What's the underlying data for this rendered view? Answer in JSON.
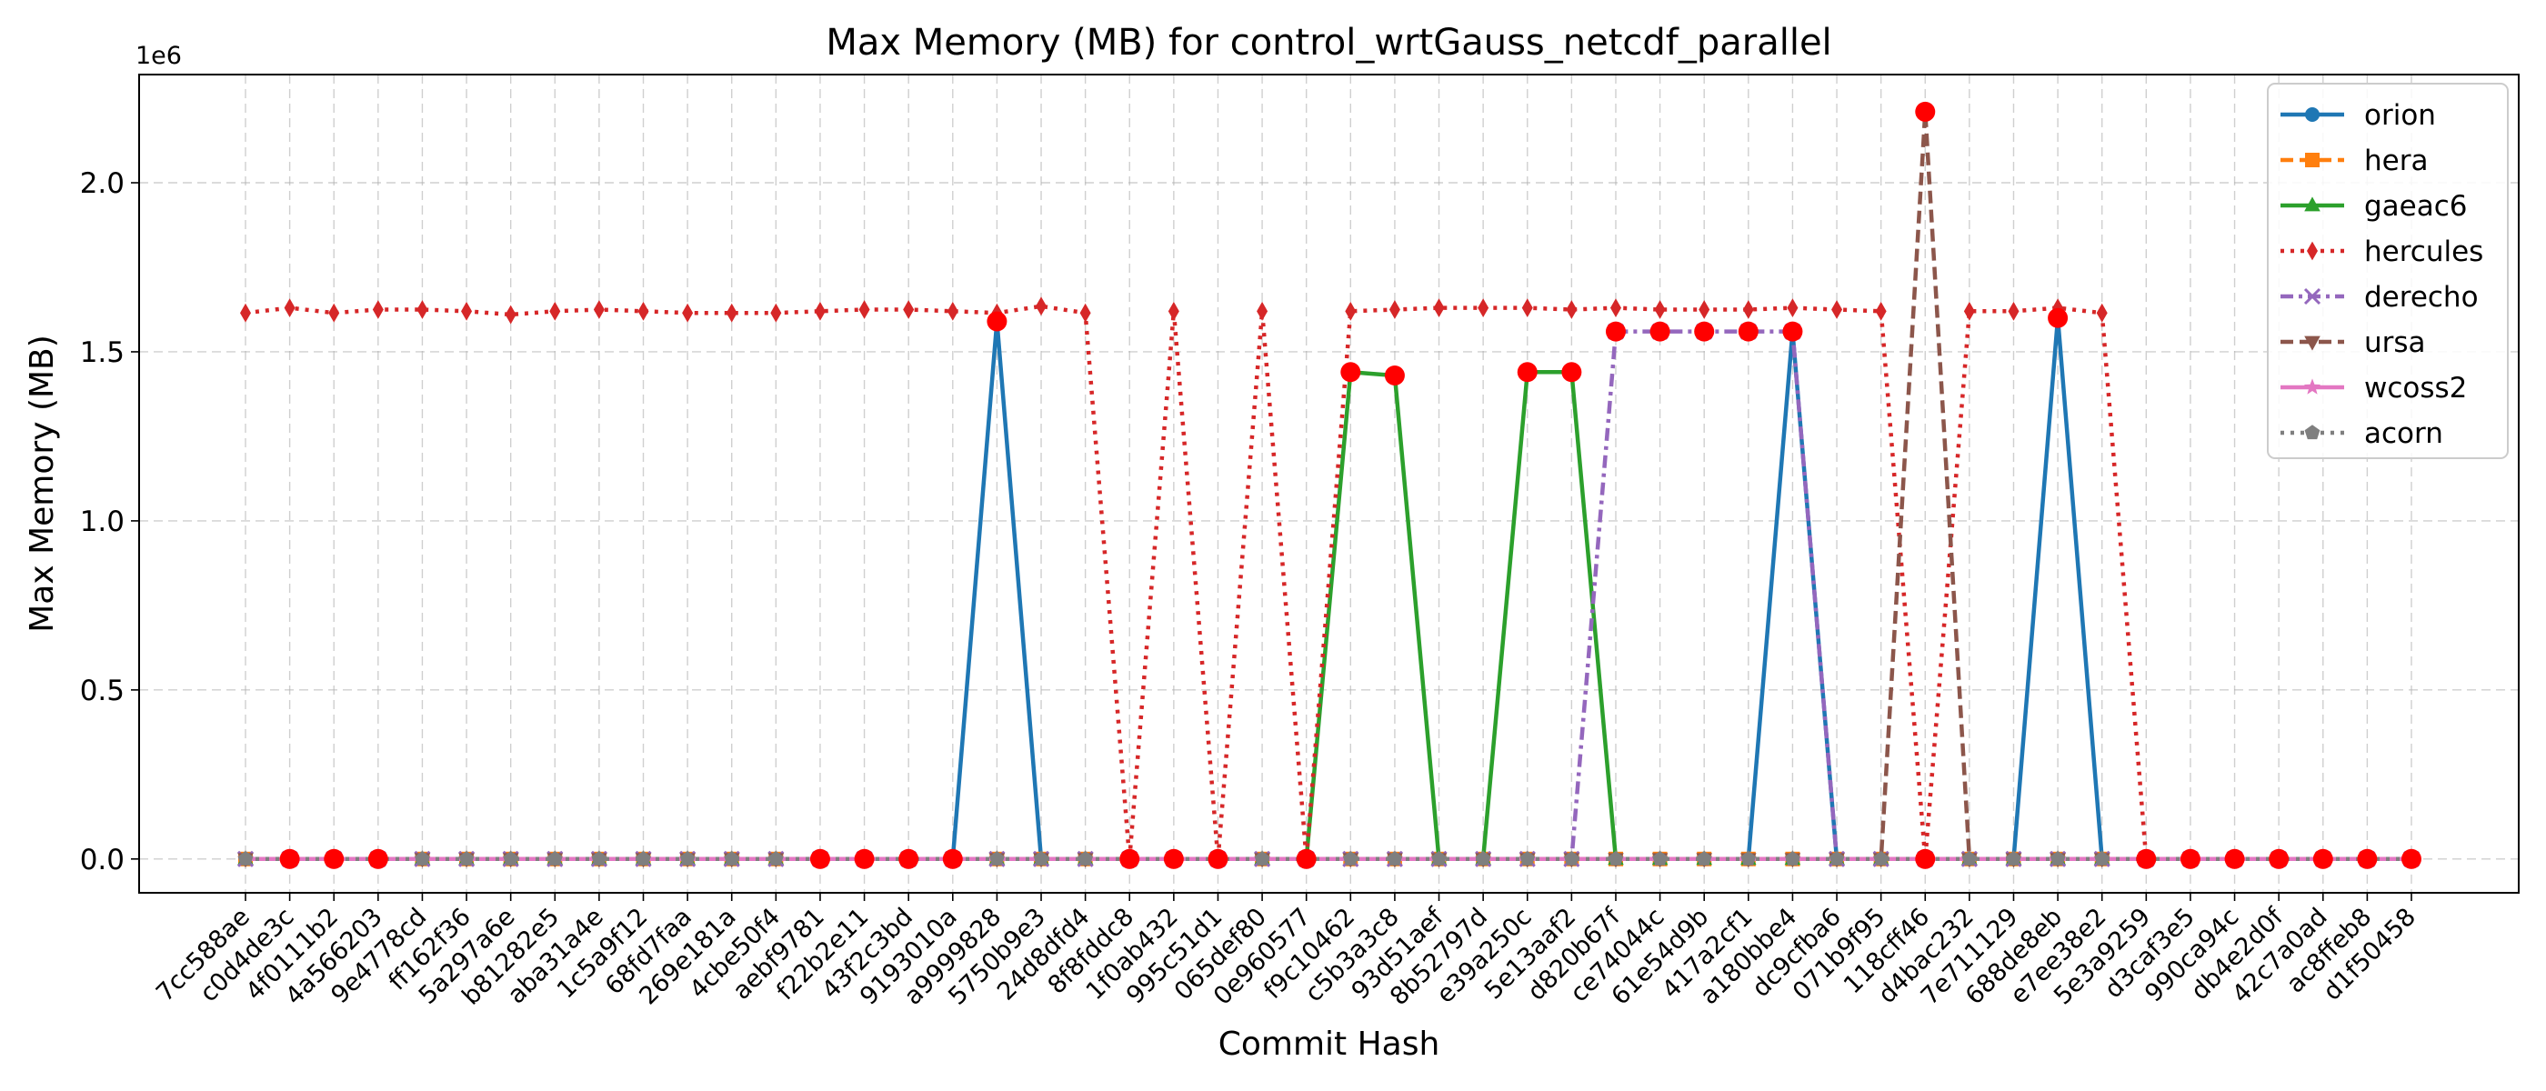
{
  "chart_data": {
    "type": "line",
    "title": "Max Memory (MB) for control_wrtGauss_netcdf_parallel",
    "xlabel": "Commit Hash",
    "ylabel": "Max Memory (MB)",
    "y_offset_label": "1e6",
    "ylim": [
      -100000,
      2320000
    ],
    "yticks": [
      0,
      500000,
      1000000,
      1500000,
      2000000
    ],
    "ytick_labels": [
      "0.0",
      "0.5",
      "1.0",
      "1.5",
      "2.0"
    ],
    "grid": true,
    "legend_position": "top-right",
    "categories": [
      "7cc588ae",
      "c0d4de3c",
      "4f0111b2",
      "4a566203",
      "9e4778cd",
      "ff162f36",
      "5a297a6e",
      "b81282e5",
      "aba31a4e",
      "1c5a9f12",
      "68fd7faa",
      "269e181a",
      "4cbe50f4",
      "aebf9781",
      "f22b2e11",
      "43f2c3bd",
      "9193010a",
      "a9999828",
      "5750b9e3",
      "24d8dfd4",
      "8f8fddc8",
      "1f0ab432",
      "995c51d1",
      "065def80",
      "0e960577",
      "f9c10462",
      "c5b3a3c8",
      "93d51aef",
      "8b52797d",
      "e39a250c",
      "5e13aaf2",
      "d820b67f",
      "ce74044c",
      "61e54d9b",
      "417a2cf1",
      "a180bbe4",
      "dc9cfba6",
      "071b9f95",
      "118cff46",
      "d4bac232",
      "7e711129",
      "688de8eb",
      "e7ee38e2",
      "5e3a9259",
      "d3caf3e5",
      "990ca94c",
      "db4e2d0f",
      "42c7a0ad",
      "ac8ffeb8",
      "d1f50458"
    ],
    "series": [
      {
        "name": "orion",
        "color": "#1f77b4",
        "dash": "solid",
        "marker": "circle",
        "values": [
          0,
          0,
          0,
          0,
          0,
          0,
          0,
          0,
          0,
          0,
          0,
          0,
          0,
          0,
          0,
          0,
          0,
          1590000,
          0,
          0,
          0,
          0,
          0,
          0,
          0,
          0,
          0,
          0,
          0,
          0,
          0,
          0,
          0,
          0,
          0,
          1560000,
          0,
          0,
          0,
          0,
          0,
          1600000,
          0,
          0,
          0,
          0,
          0,
          0,
          0,
          0
        ]
      },
      {
        "name": "hera",
        "color": "#ff7f0e",
        "dash": "dashed",
        "marker": "square",
        "values": [
          0,
          0,
          0,
          0,
          0,
          0,
          0,
          0,
          0,
          0,
          0,
          0,
          0,
          0,
          0,
          0,
          0,
          0,
          0,
          0,
          0,
          0,
          0,
          0,
          0,
          0,
          0,
          0,
          0,
          0,
          0,
          0,
          0,
          0,
          0,
          0,
          0,
          0,
          0,
          0,
          0,
          0,
          0,
          0,
          0,
          0,
          0,
          0,
          0,
          0
        ]
      },
      {
        "name": "gaeac6",
        "color": "#2ca02c",
        "dash": "solid",
        "marker": "triangle-up",
        "values": [
          0,
          0,
          0,
          0,
          0,
          0,
          0,
          0,
          0,
          0,
          0,
          0,
          0,
          0,
          0,
          0,
          0,
          0,
          0,
          0,
          0,
          0,
          0,
          0,
          0,
          1440000,
          1430000,
          0,
          0,
          1440000,
          1440000,
          0,
          0,
          0,
          0,
          0,
          0,
          0,
          0,
          0,
          0,
          0,
          0,
          0,
          0,
          0,
          0,
          0,
          0,
          0
        ]
      },
      {
        "name": "hercules",
        "color": "#d62728",
        "dash": "dotted",
        "marker": "thin-diamond",
        "values": [
          1615000,
          1630000,
          1615000,
          1625000,
          1625000,
          1620000,
          1610000,
          1620000,
          1625000,
          1620000,
          1615000,
          1615000,
          1615000,
          1620000,
          1625000,
          1625000,
          1620000,
          1615000,
          1635000,
          1615000,
          0,
          1620000,
          0,
          1620000,
          0,
          1620000,
          1625000,
          1630000,
          1630000,
          1630000,
          1625000,
          1630000,
          1625000,
          1625000,
          1625000,
          1630000,
          1625000,
          1620000,
          0,
          1620000,
          1620000,
          1630000,
          1615000,
          0,
          0,
          0,
          0,
          0,
          0,
          0
        ]
      },
      {
        "name": "derecho",
        "color": "#9467bd",
        "dash": "dashdot",
        "marker": "x",
        "values": [
          0,
          0,
          0,
          0,
          0,
          0,
          0,
          0,
          0,
          0,
          0,
          0,
          0,
          0,
          0,
          0,
          0,
          0,
          0,
          0,
          0,
          0,
          0,
          0,
          0,
          0,
          0,
          0,
          0,
          0,
          0,
          1560000,
          1560000,
          1560000,
          1560000,
          1560000,
          0,
          0,
          0,
          0,
          0,
          0,
          0,
          0,
          0,
          0,
          0,
          0,
          0,
          0
        ]
      },
      {
        "name": "ursa",
        "color": "#8c564b",
        "dash": "dashed",
        "marker": "triangle-down",
        "values": [
          0,
          0,
          0,
          0,
          0,
          0,
          0,
          0,
          0,
          0,
          0,
          0,
          0,
          0,
          0,
          0,
          0,
          0,
          0,
          0,
          0,
          0,
          0,
          0,
          0,
          0,
          0,
          0,
          0,
          0,
          0,
          0,
          0,
          0,
          0,
          0,
          0,
          0,
          2210000,
          0,
          0,
          0,
          0,
          0,
          0,
          0,
          0,
          0,
          0,
          0
        ]
      },
      {
        "name": "wcoss2",
        "color": "#e377c2",
        "dash": "solid",
        "marker": "star",
        "values": [
          0,
          0,
          0,
          0,
          0,
          0,
          0,
          0,
          0,
          0,
          0,
          0,
          0,
          0,
          0,
          0,
          0,
          0,
          0,
          0,
          0,
          0,
          0,
          0,
          0,
          0,
          0,
          0,
          0,
          0,
          0,
          0,
          0,
          0,
          0,
          0,
          0,
          0,
          0,
          0,
          0,
          0,
          0,
          0,
          0,
          0,
          0,
          0,
          0,
          0
        ]
      },
      {
        "name": "acorn",
        "color": "#7f7f7f",
        "dash": "dotted",
        "marker": "pentagon",
        "values": [
          0,
          0,
          0,
          0,
          0,
          0,
          0,
          0,
          0,
          0,
          0,
          0,
          0,
          0,
          0,
          0,
          0,
          0,
          0,
          0,
          0,
          0,
          0,
          0,
          0,
          0,
          0,
          0,
          0,
          0,
          0,
          0,
          0,
          0,
          0,
          0,
          0,
          0,
          0,
          0,
          0,
          0,
          0,
          0,
          0,
          0,
          0,
          0,
          0,
          0
        ]
      }
    ],
    "highlight_color": "#ff0000",
    "highlights": [
      {
        "x": "c0d4de3c",
        "y": 0
      },
      {
        "x": "4f0111b2",
        "y": 0
      },
      {
        "x": "4a566203",
        "y": 0
      },
      {
        "x": "aebf9781",
        "y": 0
      },
      {
        "x": "f22b2e11",
        "y": 0
      },
      {
        "x": "43f2c3bd",
        "y": 0
      },
      {
        "x": "9193010a",
        "y": 0
      },
      {
        "x": "a9999828",
        "y": 1590000
      },
      {
        "x": "8f8fddc8",
        "y": 0
      },
      {
        "x": "1f0ab432",
        "y": 0
      },
      {
        "x": "995c51d1",
        "y": 0
      },
      {
        "x": "0e960577",
        "y": 0
      },
      {
        "x": "f9c10462",
        "y": 1440000
      },
      {
        "x": "c5b3a3c8",
        "y": 1430000
      },
      {
        "x": "e39a250c",
        "y": 1440000
      },
      {
        "x": "5e13aaf2",
        "y": 1440000
      },
      {
        "x": "d820b67f",
        "y": 1560000
      },
      {
        "x": "ce74044c",
        "y": 1560000
      },
      {
        "x": "61e54d9b",
        "y": 1560000
      },
      {
        "x": "417a2cf1",
        "y": 1560000
      },
      {
        "x": "a180bbe4",
        "y": 1560000
      },
      {
        "x": "118cff46",
        "y": 2210000
      },
      {
        "x": "118cff46",
        "y": 0
      },
      {
        "x": "688de8eb",
        "y": 1600000
      },
      {
        "x": "5e3a9259",
        "y": 0
      },
      {
        "x": "d3caf3e5",
        "y": 0
      },
      {
        "x": "990ca94c",
        "y": 0
      },
      {
        "x": "db4e2d0f",
        "y": 0
      },
      {
        "x": "42c7a0ad",
        "y": 0
      },
      {
        "x": "ac8ffeb8",
        "y": 0
      },
      {
        "x": "d1f50458",
        "y": 0
      }
    ]
  }
}
